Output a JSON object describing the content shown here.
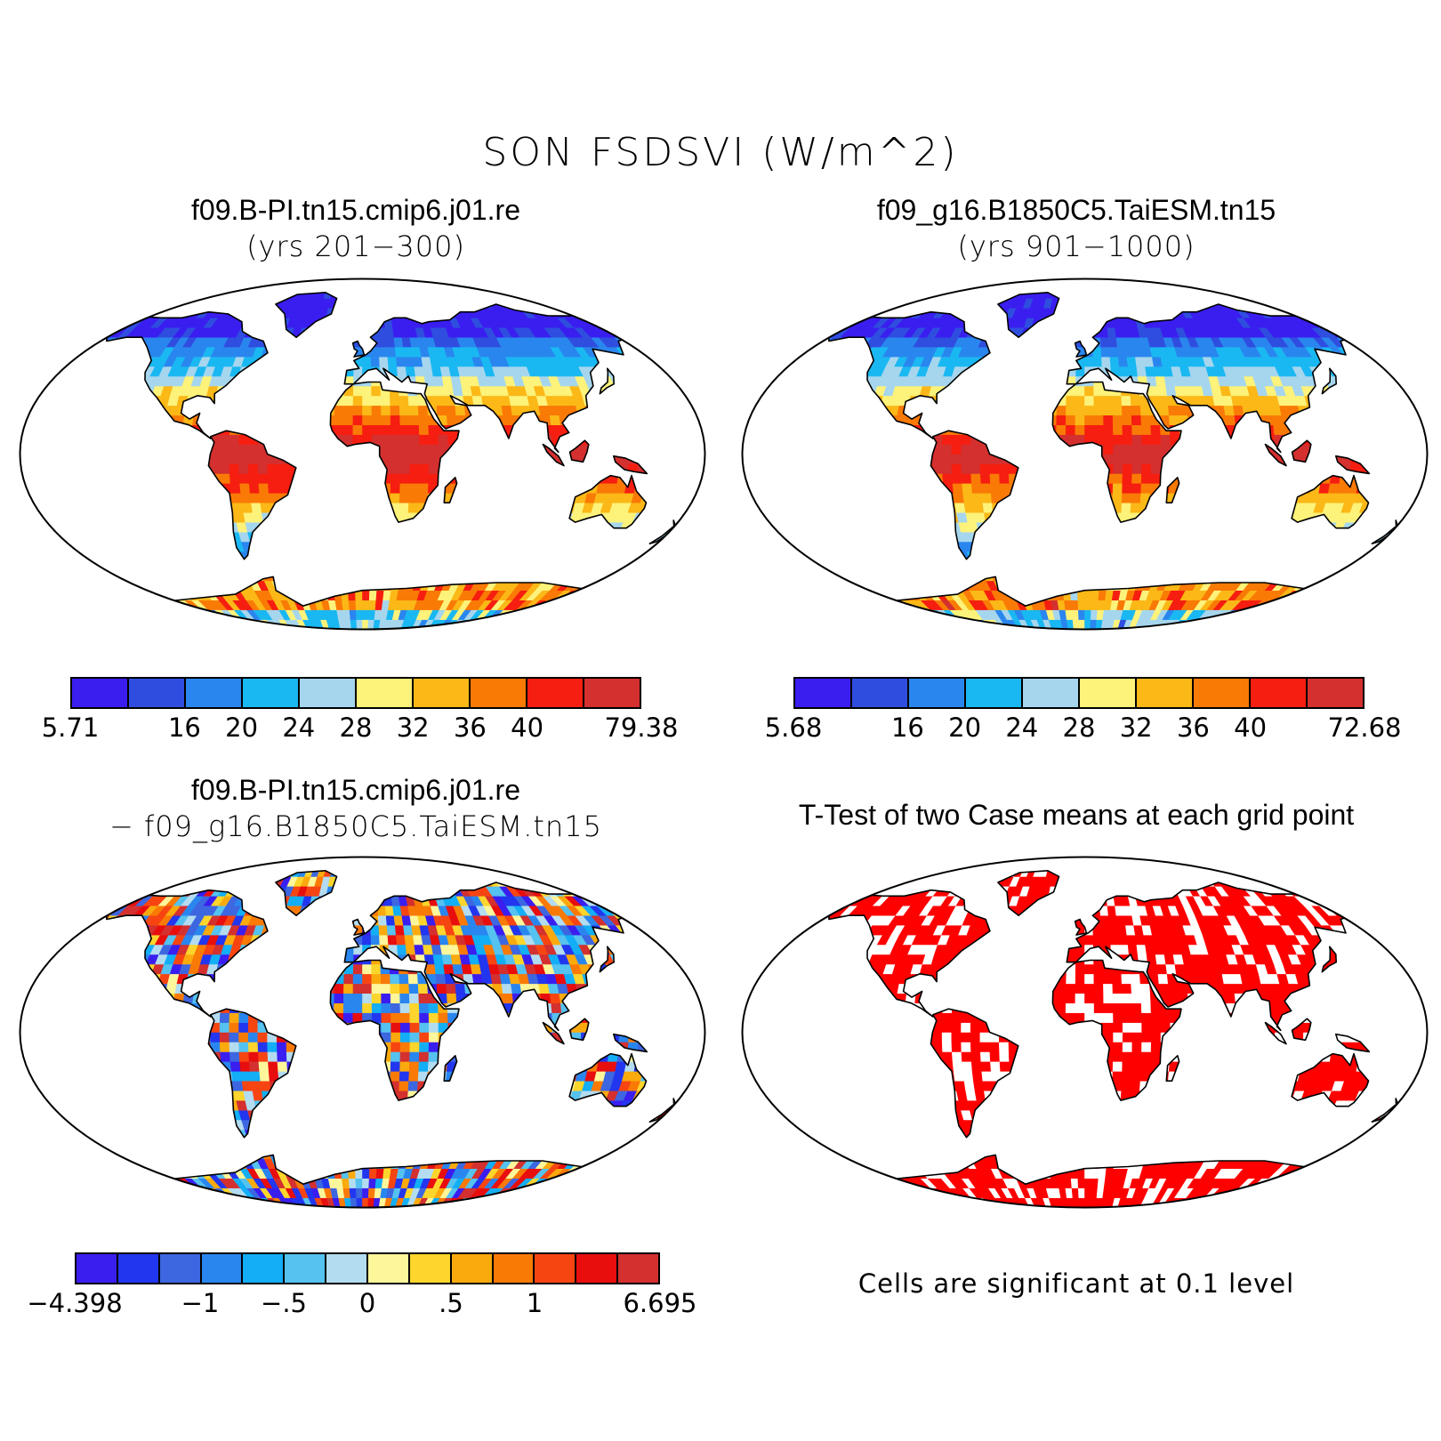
{
  "title": "SON FSDSVI (W/m^2)",
  "panels": [
    {
      "id": "case1",
      "title": "f09.B-PI.tn15.cmip6.j01.re",
      "subtitle": "(yrs 201−300)",
      "colorbar": {
        "colors": [
          "#3a1ef0",
          "#2f4ee0",
          "#2a86ef",
          "#1ab8f2",
          "#a6d6ee",
          "#fdf27a",
          "#fbb817",
          "#fa7a06",
          "#f61e10",
          "#d3302f"
        ],
        "labels": [
          "5.71",
          "",
          "16",
          "20",
          "24",
          "28",
          "32",
          "36",
          "40",
          "",
          "79.38"
        ]
      }
    },
    {
      "id": "case2",
      "title": "f09_g16.B1850C5.TaiESM.tn15",
      "subtitle": "(yrs 901−1000)",
      "colorbar": {
        "colors": [
          "#3a1ef0",
          "#2f4ee0",
          "#2a86ef",
          "#1ab8f2",
          "#a6d6ee",
          "#fdf27a",
          "#fbb817",
          "#fa7a06",
          "#f61e10",
          "#d3302f"
        ],
        "labels": [
          "5.68",
          "",
          "16",
          "20",
          "24",
          "28",
          "32",
          "36",
          "40",
          "",
          "72.68"
        ]
      }
    },
    {
      "id": "diff",
      "title": "f09.B-PI.tn15.cmip6.j01.re",
      "subtitle": "− f09_g16.B1850C5.TaiESM.tn15",
      "colorbar": {
        "colors": [
          "#3a1ef0",
          "#2236ef",
          "#3d67e0",
          "#2a86ef",
          "#13aef6",
          "#55c2f0",
          "#b3dcf0",
          "#fef69a",
          "#fdd52c",
          "#fbaa0e",
          "#fa7a06",
          "#f74512",
          "#e80e0e",
          "#d3302f"
        ],
        "labels": [
          "−4.398",
          "",
          "",
          "−1",
          "",
          "−.5",
          "",
          "0",
          "",
          ".5",
          "",
          "1",
          "",
          "",
          "6.695"
        ]
      }
    },
    {
      "id": "ttest",
      "title": "T-Test of two Case means at each grid point",
      "subtitle": "",
      "note": "Cells are significant at 0.1 level"
    }
  ]
}
